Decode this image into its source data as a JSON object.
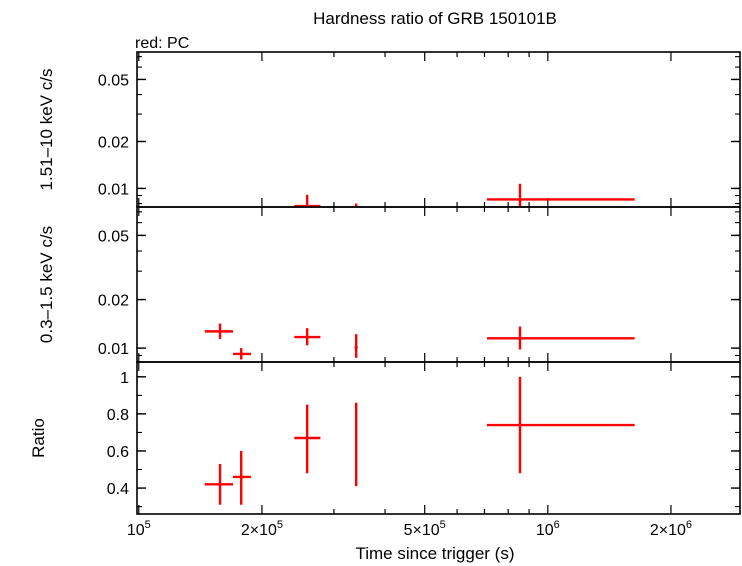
{
  "title": "Hardness ratio of GRB 150101B",
  "legend_label": "red: PC",
  "xlabel": "Time since trigger (s)",
  "colors": {
    "data": "#ff0000",
    "axes": "#000000"
  },
  "chart_data": [
    {
      "type": "scatter",
      "panel": "hard",
      "ylabel": "1.51–10 keV c/s",
      "yscale": "log",
      "ylim": [
        0.0076,
        0.075
      ],
      "yticks": [
        {
          "v": 0.05,
          "label": "0.05"
        },
        {
          "v": 0.02,
          "label": "0.02"
        },
        {
          "v": 0.01,
          "label": "0.01"
        }
      ],
      "xscale": "log",
      "xlim": [
        99000,
        2950000
      ],
      "series": [
        {
          "points": [
            {
              "x": 258000,
              "xlo": 240000,
              "xhi": 278000,
              "y": 0.0077,
              "ylo": 0.0072,
              "yhi": 0.0091
            },
            {
              "x": 340000,
              "xlo": 340000,
              "xhi": 340000,
              "y": 0.0074,
              "ylo": 0.0071,
              "yhi": 0.008
            },
            {
              "x": 855000,
              "xlo": 710000,
              "xhi": 1630000,
              "y": 0.0085,
              "ylo": 0.0073,
              "yhi": 0.0107
            }
          ]
        }
      ]
    },
    {
      "type": "scatter",
      "panel": "soft",
      "ylabel": "0.3–1.5 keV c/s",
      "yscale": "log",
      "ylim": [
        0.0082,
        0.075
      ],
      "yticks": [
        {
          "v": 0.05,
          "label": "0.05"
        },
        {
          "v": 0.02,
          "label": "0.02"
        },
        {
          "v": 0.01,
          "label": "0.01"
        }
      ],
      "xscale": "log",
      "xlim": [
        99000,
        2950000
      ],
      "series": [
        {
          "points": [
            {
              "x": 158000,
              "xlo": 145000,
              "xhi": 170000,
              "y": 0.0127,
              "ylo": 0.0114,
              "yhi": 0.0142
            },
            {
              "x": 178000,
              "xlo": 170000,
              "xhi": 188000,
              "y": 0.0092,
              "ylo": 0.0085,
              "yhi": 0.01
            },
            {
              "x": 258000,
              "xlo": 240000,
              "xhi": 278000,
              "y": 0.0117,
              "ylo": 0.0104,
              "yhi": 0.0133
            },
            {
              "x": 340000,
              "xlo": 337000,
              "xhi": 343000,
              "y": 0.0101,
              "ylo": 0.0087,
              "yhi": 0.0122
            },
            {
              "x": 855000,
              "xlo": 710000,
              "xhi": 1630000,
              "y": 0.0115,
              "ylo": 0.0098,
              "yhi": 0.0136
            }
          ]
        }
      ]
    },
    {
      "type": "scatter",
      "panel": "ratio",
      "ylabel": "Ratio",
      "yscale": "linear",
      "ylim": [
        0.26,
        1.08
      ],
      "yticks": [
        {
          "v": 0.4,
          "label": "0.4"
        },
        {
          "v": 0.6,
          "label": "0.6"
        },
        {
          "v": 0.8,
          "label": "0.8"
        },
        {
          "v": 1.0,
          "label": "1"
        }
      ],
      "xscale": "log",
      "xlim": [
        99000,
        2950000
      ],
      "xticks": [
        {
          "v": 100000,
          "base": "10",
          "exp": "5"
        },
        {
          "v": 200000,
          "base": "2×10",
          "exp": "5"
        },
        {
          "v": 500000,
          "base": "5×10",
          "exp": "5"
        },
        {
          "v": 1000000,
          "base": "10",
          "exp": "6"
        },
        {
          "v": 2000000,
          "base": "2×10",
          "exp": "6"
        }
      ],
      "series": [
        {
          "points": [
            {
              "x": 158000,
              "xlo": 145000,
              "xhi": 170000,
              "y": 0.42,
              "ylo": 0.31,
              "yhi": 0.53
            },
            {
              "x": 178000,
              "xlo": 170000,
              "xhi": 188000,
              "y": 0.46,
              "ylo": 0.31,
              "yhi": 0.6
            },
            {
              "x": 258000,
              "xlo": 240000,
              "xhi": 278000,
              "y": 0.67,
              "ylo": 0.48,
              "yhi": 0.85
            },
            {
              "x": 340000,
              "xlo": 340000,
              "xhi": 340000,
              "y": 0.63,
              "ylo": 0.41,
              "yhi": 0.86
            },
            {
              "x": 855000,
              "xlo": 710000,
              "xhi": 1630000,
              "y": 0.74,
              "ylo": 0.48,
              "yhi": 1.0
            }
          ]
        }
      ]
    }
  ]
}
